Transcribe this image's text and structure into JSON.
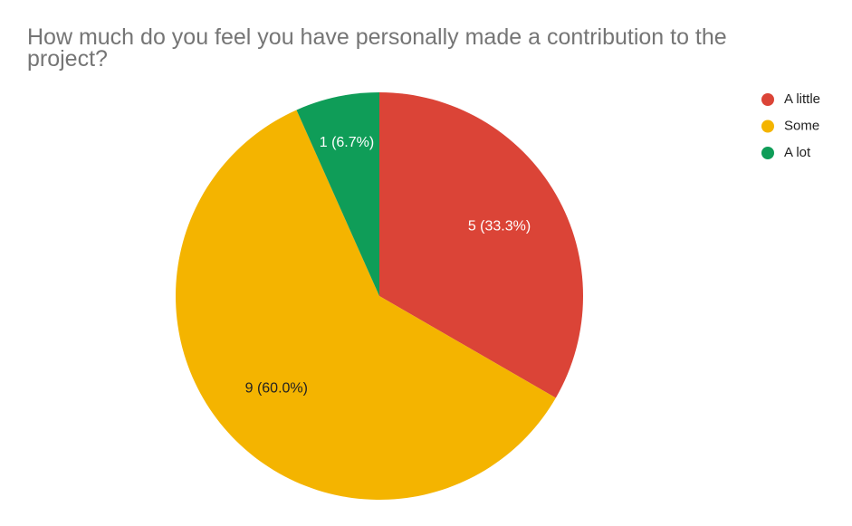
{
  "chart_data": {
    "type": "pie",
    "title": "How much do you feel you have personally made a contribution to the project?",
    "categories": [
      "A little",
      "Some",
      "A lot"
    ],
    "values": [
      5,
      9,
      1
    ],
    "value_labels": [
      "5 (33.3%)",
      "9 (60.0%)",
      "1 (6.7%)"
    ],
    "colors": [
      "#db4437",
      "#f4b400",
      "#0f9d58"
    ],
    "legend": "right"
  }
}
